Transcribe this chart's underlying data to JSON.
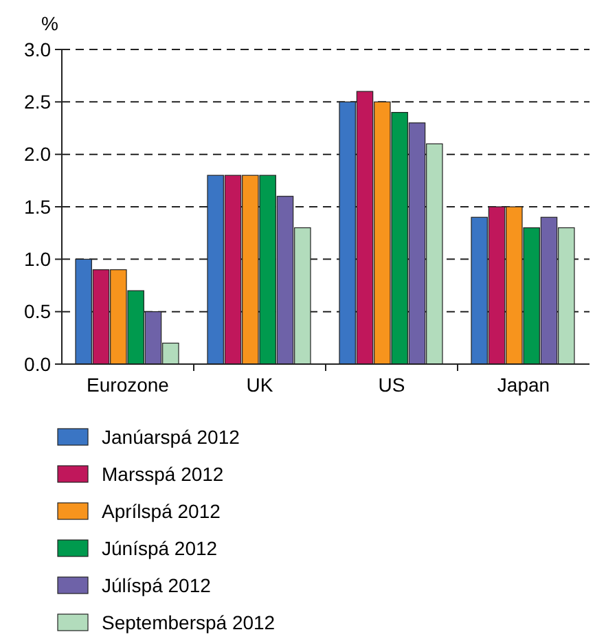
{
  "chart_data": {
    "type": "bar",
    "ylabel": "%",
    "categories": [
      "Eurozone",
      "UK",
      "US",
      "Japan"
    ],
    "series": [
      {
        "name": "Janúarspá 2012",
        "color": "#3a75c4",
        "values": [
          1.0,
          1.8,
          2.5,
          1.4
        ]
      },
      {
        "name": "Marsspá 2012",
        "color": "#c0175b",
        "values": [
          0.9,
          1.8,
          2.6,
          1.5
        ]
      },
      {
        "name": "Aprílspá 2012",
        "color": "#f7941d",
        "values": [
          0.9,
          1.8,
          2.5,
          1.5
        ]
      },
      {
        "name": "Júníspá 2012",
        "color": "#009a4e",
        "values": [
          0.7,
          1.8,
          2.4,
          1.3
        ]
      },
      {
        "name": "Júlíspá 2012",
        "color": "#6e62a8",
        "values": [
          0.5,
          1.6,
          2.3,
          1.4
        ]
      },
      {
        "name": "Septemberspá 2012",
        "color": "#b2dcbc",
        "values": [
          0.2,
          1.3,
          2.1,
          1.3
        ]
      }
    ],
    "ylim": [
      0,
      3
    ],
    "yticks": [
      {
        "value": 0,
        "label": "0.0"
      },
      {
        "value": 0.5,
        "label": "0.5"
      },
      {
        "value": 1,
        "label": "1.0"
      },
      {
        "value": 1.5,
        "label": "1.5"
      },
      {
        "value": 2,
        "label": "2.0"
      },
      {
        "value": 2.5,
        "label": "2.5"
      },
      {
        "value": 3,
        "label": "3.0"
      }
    ],
    "grid": "y",
    "legend": "bottom"
  }
}
